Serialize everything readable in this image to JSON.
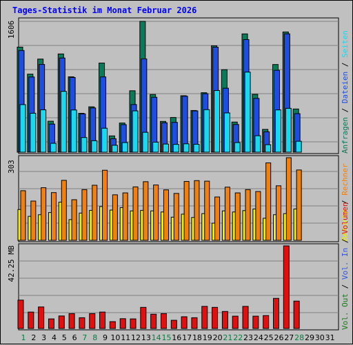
{
  "title": "Tages-Statistik im Monat Februar 2026",
  "colors": {
    "anfragen": "#0b7a5a",
    "dateien": "#1e4de0",
    "seiten": "#1ad8ee",
    "besuche": "#f0f000",
    "rechner": "#f08010",
    "vol_in": "#3355dd",
    "vol_out": "#1a7a1a",
    "volumen": "#e01010",
    "weekday": "#000000",
    "weekend": "#008040",
    "plot_bg": "#c0c0c0",
    "grid": "#808080"
  },
  "legend": {
    "top": [
      {
        "text": "Anfragen",
        "color": "#0b7a5a"
      },
      {
        "text": "Dateien",
        "color": "#1e4de0"
      },
      {
        "text": "Seiten",
        "color": "#1ad8ee"
      }
    ],
    "middle": [
      {
        "text": "Besuche",
        "color": "#f0f000"
      },
      {
        "text": "Rechner",
        "color": "#f08010"
      }
    ],
    "bottom": [
      {
        "text": "Vol. Out",
        "color": "#1a7a1a"
      },
      {
        "text": "Vol. In",
        "color": "#3355dd"
      },
      {
        "text": "Volumen",
        "color": "#e01010"
      }
    ],
    "separator": " / "
  },
  "chart_data": [
    {
      "type": "bar",
      "panel": "hits",
      "ymax_label": "1606",
      "ylim": [
        0,
        1606
      ],
      "grid": true,
      "days": [
        "1",
        "2",
        "3",
        "4",
        "5",
        "6",
        "7",
        "8",
        "9",
        "10",
        "11",
        "12",
        "13",
        "14",
        "15",
        "16",
        "17",
        "18",
        "19",
        "20",
        "21",
        "22",
        "23",
        "24",
        "25",
        "26",
        "27",
        "28",
        "29",
        "30",
        "31"
      ],
      "series": [
        {
          "name": "Anfragen",
          "values": [
            1290,
            958,
            1143,
            380,
            1206,
            925,
            477,
            557,
            1094,
            200,
            358,
            754,
            1606,
            708,
            378,
            426,
            693,
            512,
            730,
            1306,
            1013,
            370,
            1452,
            710,
            280,
            1076,
            1476,
            530,
            0,
            0,
            0
          ]
        },
        {
          "name": "Dateien",
          "values": [
            1248,
            923,
            1077,
            345,
            1156,
            917,
            470,
            543,
            924,
            165,
            338,
            585,
            1145,
            674,
            361,
            366,
            687,
            507,
            718,
            1289,
            785,
            340,
            1382,
            660,
            250,
            1005,
            1453,
            473,
            0,
            0,
            0
          ]
        },
        {
          "name": "Seiten",
          "values": [
            584,
            478,
            520,
            109,
            747,
            518,
            180,
            141,
            294,
            85,
            118,
            507,
            244,
            123,
            100,
            96,
            103,
            97,
            522,
            757,
            482,
            118,
            983,
            202,
            92,
            519,
            538,
            134,
            0,
            0,
            0
          ]
        }
      ]
    },
    {
      "type": "bar",
      "panel": "visits",
      "ymax_label": "303",
      "ylim": [
        0,
        303
      ],
      "grid": true,
      "days": [
        "1",
        "2",
        "3",
        "4",
        "5",
        "6",
        "7",
        "8",
        "9",
        "10",
        "11",
        "12",
        "13",
        "14",
        "15",
        "16",
        "17",
        "18",
        "19",
        "20",
        "21",
        "22",
        "23",
        "24",
        "25",
        "26",
        "27",
        "28",
        "29",
        "30",
        "31"
      ],
      "series": [
        {
          "name": "Besuche",
          "values": [
            113,
            88,
            94,
            102,
            140,
            76,
            100,
            110,
            124,
            111,
            120,
            108,
            110,
            108,
            104,
            85,
            96,
            84,
            98,
            63,
            108,
            104,
            109,
            115,
            81,
            94,
            98,
            115,
            0,
            0,
            0
          ]
        },
        {
          "name": "Rechner",
          "values": [
            182,
            144,
            193,
            175,
            220,
            149,
            186,
            202,
            257,
            167,
            174,
            196,
            215,
            203,
            185,
            172,
            216,
            219,
            217,
            159,
            195,
            174,
            186,
            179,
            284,
            200,
            303,
            258,
            0,
            0,
            0
          ]
        }
      ]
    },
    {
      "type": "bar",
      "panel": "volume",
      "ymax_label": "42.25 MB",
      "ylim": [
        0,
        42.25
      ],
      "grid": true,
      "days": [
        "1",
        "2",
        "3",
        "4",
        "5",
        "6",
        "7",
        "8",
        "9",
        "10",
        "11",
        "12",
        "13",
        "14",
        "15",
        "16",
        "17",
        "18",
        "19",
        "20",
        "21",
        "22",
        "23",
        "24",
        "25",
        "26",
        "27",
        "28",
        "29",
        "30",
        "31"
      ],
      "weekend_days": [
        "1",
        "7",
        "8",
        "14",
        "15",
        "21",
        "22",
        "28"
      ],
      "series": [
        {
          "name": "Volumen",
          "values": [
            14.5,
            8.4,
            11.0,
            4.9,
            6.4,
            7.6,
            5.5,
            7.6,
            8.4,
            3.5,
            5.0,
            4.9,
            10.8,
            7.3,
            7.6,
            4.2,
            6.0,
            5.5,
            11.3,
            10.8,
            8.7,
            6.3,
            11.3,
            6.3,
            6.6,
            15.4,
            42.25,
            14.0,
            0,
            0,
            0
          ]
        }
      ]
    }
  ]
}
